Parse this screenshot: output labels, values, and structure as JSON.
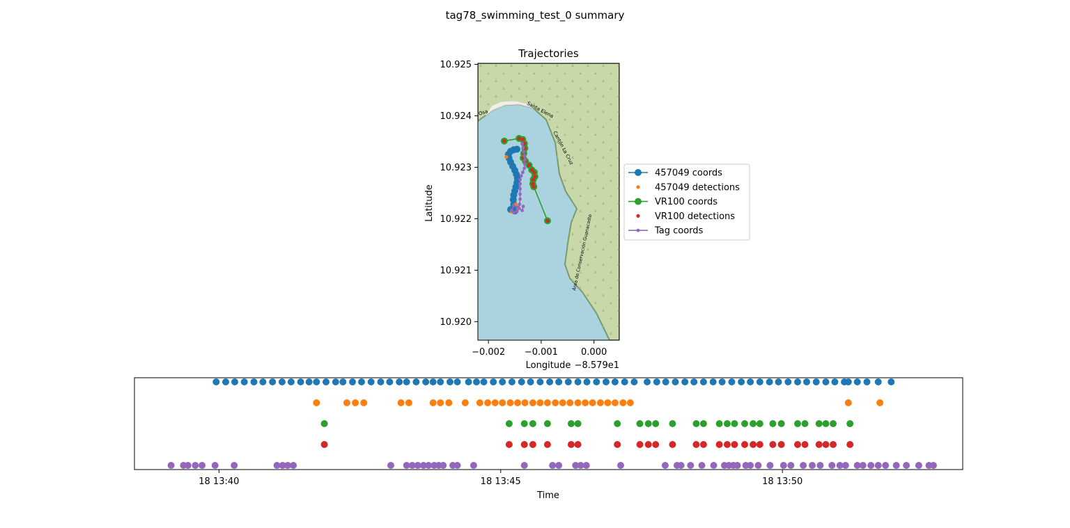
{
  "figure": {
    "suptitle": "tag78_swimming_test_0 summary"
  },
  "colors": {
    "blue": "#1f77b4",
    "orange": "#ff7f0e",
    "green": "#2ca02c",
    "red": "#d62728",
    "purple": "#9467bd",
    "water": "#aad3df",
    "land": "#c8d8a8",
    "coast": "#7a9a6a",
    "beach": "#f2efe9"
  },
  "chart_data": [
    {
      "type": "scatter",
      "title": "Trajectories",
      "xlabel": "Longitude",
      "ylabel": "Latitude",
      "x_offset_text": "−8.579e1",
      "xlim": [
        -0.0022,
        0.00048
      ],
      "ylim": [
        10.91964,
        10.92502
      ],
      "x_ticks": [
        -0.002,
        -0.001,
        0.0
      ],
      "x_tick_labels": [
        "−0.002",
        "−0.001",
        "0.000"
      ],
      "y_ticks": [
        10.92,
        10.921,
        10.922,
        10.923,
        10.924,
        10.925
      ],
      "y_tick_labels": [
        "10.920",
        "10.921",
        "10.922",
        "10.923",
        "10.924",
        "10.925"
      ],
      "background": "map tiles (coastline)",
      "map_labels": [
        "Santa Elena",
        "Cantón La Cruz",
        "Área de Conservación Guanacaste",
        "Osa"
      ],
      "legend_position": "center-right",
      "series": [
        {
          "name": "457049 coords",
          "style": "line-marker",
          "color": "blue",
          "points": [
            [
              -0.00158,
              10.92218
            ],
            [
              -0.0015,
              10.92215
            ],
            [
              -0.00148,
              10.9222
            ],
            [
              -0.00152,
              10.92228
            ],
            [
              -0.00153,
              10.92237
            ],
            [
              -0.00152,
              10.92246
            ],
            [
              -0.0015,
              10.92254
            ],
            [
              -0.00148,
              10.92262
            ],
            [
              -0.00146,
              10.9227
            ],
            [
              -0.00145,
              10.92278
            ],
            [
              -0.00147,
              10.92286
            ],
            [
              -0.0015,
              10.92294
            ],
            [
              -0.00154,
              10.92302
            ],
            [
              -0.00158,
              10.9231
            ],
            [
              -0.00161,
              10.92318
            ],
            [
              -0.00162,
              10.92325
            ],
            [
              -0.00158,
              10.92331
            ],
            [
              -0.00152,
              10.92334
            ],
            [
              -0.00146,
              10.92335
            ]
          ]
        },
        {
          "name": "457049 detections",
          "style": "marker",
          "color": "orange",
          "points": [
            [
              -0.00166,
              10.9232
            ],
            [
              -0.00156,
              10.92214
            ],
            [
              -0.00148,
              10.92228
            ],
            [
              -0.00144,
              10.9222
            ],
            [
              -0.00142,
              10.92355
            ]
          ]
        },
        {
          "name": "VR100 coords",
          "style": "line-marker",
          "color": "green",
          "points": [
            [
              -0.0017,
              10.92351
            ],
            [
              -0.00142,
              10.92356
            ],
            [
              -0.00135,
              10.92354
            ],
            [
              -0.00132,
              10.92346
            ],
            [
              -0.00131,
              10.92337
            ],
            [
              -0.00133,
              10.92327
            ],
            [
              -0.00134,
              10.92318
            ],
            [
              -0.0013,
              10.92312
            ],
            [
              -0.00123,
              10.92304
            ],
            [
              -0.00118,
              10.92295
            ],
            [
              -0.00113,
              10.9229
            ],
            [
              -0.00112,
              10.92282
            ],
            [
              -0.00115,
              10.92276
            ],
            [
              -0.00116,
              10.92268
            ],
            [
              -0.00114,
              10.92262
            ],
            [
              -0.00088,
              10.92196
            ]
          ]
        },
        {
          "name": "VR100 detections",
          "style": "marker",
          "color": "red",
          "points": [
            [
              -0.0017,
              10.92351
            ],
            [
              -0.00142,
              10.92356
            ],
            [
              -0.00135,
              10.92354
            ],
            [
              -0.00132,
              10.92346
            ],
            [
              -0.00131,
              10.92337
            ],
            [
              -0.00133,
              10.92327
            ],
            [
              -0.00134,
              10.92318
            ],
            [
              -0.0013,
              10.92312
            ],
            [
              -0.00123,
              10.92304
            ],
            [
              -0.00118,
              10.92295
            ],
            [
              -0.00113,
              10.9229
            ],
            [
              -0.00112,
              10.92282
            ],
            [
              -0.00115,
              10.92276
            ],
            [
              -0.00116,
              10.92268
            ],
            [
              -0.00114,
              10.92262
            ],
            [
              -0.00088,
              10.92196
            ]
          ]
        },
        {
          "name": "Tag coords",
          "style": "line-small-marker",
          "color": "purple",
          "points": [
            [
              -0.00136,
              10.92346
            ],
            [
              -0.00134,
              10.92338
            ],
            [
              -0.00133,
              10.9233
            ],
            [
              -0.00132,
              10.92322
            ],
            [
              -0.00131,
              10.92314
            ],
            [
              -0.00131,
              10.92306
            ],
            [
              -0.00132,
              10.92298
            ],
            [
              -0.00135,
              10.9229
            ],
            [
              -0.00138,
              10.92283
            ],
            [
              -0.0014,
              10.92276
            ],
            [
              -0.0014,
              10.92268
            ],
            [
              -0.0014,
              10.92258
            ],
            [
              -0.0014,
              10.92248
            ],
            [
              -0.0014,
              10.92238
            ],
            [
              -0.00141,
              10.92228
            ],
            [
              -0.00142,
              10.9222
            ],
            [
              -0.00146,
              10.92214
            ],
            [
              -0.00152,
              10.92212
            ],
            [
              -0.00156,
              10.92216
            ],
            [
              -0.00152,
              10.92226
            ],
            [
              -0.00144,
              10.92222
            ],
            [
              -0.00136,
              10.92216
            ],
            [
              -0.00134,
              10.92224
            ]
          ]
        }
      ]
    },
    {
      "type": "scatter",
      "xlabel": "Time",
      "x_ticks": [
        "18 13:40",
        "18 13:45",
        "18 13:50"
      ],
      "x_tick_minutes": [
        40,
        45,
        50
      ],
      "xlim_minutes": [
        38.5,
        53.2
      ],
      "y_ticks": [],
      "rows": [
        {
          "name": "457049 coords",
          "color": "blue",
          "t_minutes": [
            39.95,
            40.12,
            40.28,
            40.45,
            40.62,
            40.78,
            40.95,
            41.12,
            41.28,
            41.45,
            41.6,
            41.73,
            41.9,
            42.07,
            42.2,
            42.37,
            42.53,
            42.7,
            42.87,
            43.03,
            43.2,
            43.33,
            43.5,
            43.67,
            43.8,
            43.93,
            44.1,
            44.23,
            44.43,
            44.57,
            44.7,
            44.87,
            45.03,
            45.2,
            45.37,
            45.53,
            45.7,
            45.87,
            46.03,
            46.2,
            46.37,
            46.53,
            46.7,
            46.87,
            47.03,
            47.2,
            47.37,
            47.6,
            47.77,
            47.93,
            48.1,
            48.27,
            48.43,
            48.6,
            48.77,
            48.93,
            49.1,
            49.27,
            49.43,
            49.6,
            49.77,
            49.93,
            50.1,
            50.27,
            50.43,
            50.6,
            50.77,
            50.93,
            51.1,
            51.17,
            51.33,
            51.5,
            51.7,
            51.93
          ]
        },
        {
          "name": "457049 detections",
          "color": "orange",
          "t_minutes": [
            41.73,
            42.27,
            42.42,
            42.57,
            43.23,
            43.37,
            43.8,
            43.93,
            44.08,
            44.37,
            44.63,
            44.77,
            44.9,
            45.03,
            45.17,
            45.3,
            45.43,
            45.57,
            45.7,
            45.83,
            45.97,
            46.1,
            46.23,
            46.37,
            46.5,
            46.63,
            46.77,
            46.9,
            47.03,
            47.17,
            47.3,
            51.17,
            51.73
          ]
        },
        {
          "name": "VR100 coords",
          "color": "green",
          "t_minutes": [
            41.87,
            45.15,
            45.42,
            45.57,
            45.83,
            46.25,
            46.37,
            47.07,
            47.47,
            47.62,
            47.75,
            48.05,
            48.47,
            48.6,
            48.88,
            49.02,
            49.15,
            49.33,
            49.48,
            49.6,
            49.83,
            49.98,
            50.27,
            50.4,
            50.65,
            50.77,
            50.9,
            51.2
          ]
        },
        {
          "name": "VR100 detections",
          "color": "red",
          "t_minutes": [
            41.87,
            45.15,
            45.42,
            45.57,
            45.83,
            46.25,
            46.37,
            47.07,
            47.47,
            47.62,
            47.75,
            48.05,
            48.47,
            48.6,
            48.88,
            49.02,
            49.15,
            49.33,
            49.48,
            49.6,
            49.83,
            49.98,
            50.27,
            50.4,
            50.65,
            50.77,
            50.9,
            51.2
          ]
        },
        {
          "name": "Tag coords",
          "color": "purple",
          "t_minutes": [
            39.15,
            39.37,
            39.45,
            39.58,
            39.7,
            39.93,
            40.27,
            41.03,
            41.13,
            41.22,
            41.32,
            43.05,
            43.33,
            43.43,
            43.53,
            43.63,
            43.72,
            43.82,
            43.9,
            43.98,
            44.15,
            44.23,
            44.52,
            45.42,
            45.92,
            46.03,
            46.33,
            46.42,
            46.52,
            47.13,
            47.92,
            48.13,
            48.2,
            48.37,
            48.57,
            48.78,
            48.97,
            49.05,
            49.13,
            49.2,
            49.35,
            49.43,
            49.57,
            49.78,
            50.02,
            50.15,
            50.37,
            50.53,
            50.67,
            50.88,
            51.02,
            51.12,
            51.33,
            51.43,
            51.57,
            51.7,
            51.83,
            52.02,
            52.2,
            52.42,
            52.6,
            52.68
          ]
        }
      ]
    }
  ],
  "legend": {
    "items": [
      {
        "label": "457049 coords",
        "color": "blue",
        "kind": "line-marker"
      },
      {
        "label": "457049 detections",
        "color": "orange",
        "kind": "marker"
      },
      {
        "label": "VR100 coords",
        "color": "green",
        "kind": "line-marker"
      },
      {
        "label": "VR100 detections",
        "color": "red",
        "kind": "marker"
      },
      {
        "label": "Tag coords",
        "color": "purple",
        "kind": "line-small-marker"
      }
    ]
  }
}
